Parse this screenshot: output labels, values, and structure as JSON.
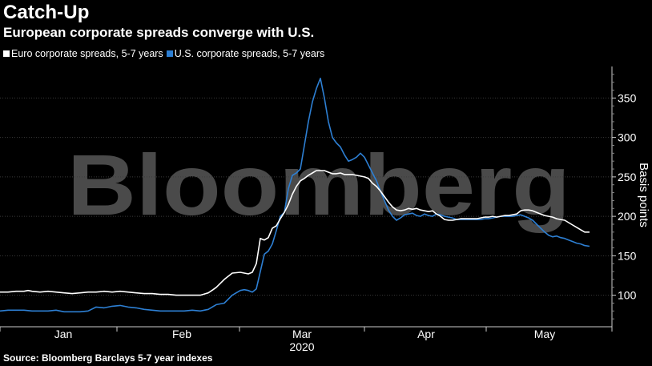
{
  "chart_data": {
    "type": "line",
    "title": "Catch-Up",
    "subtitle": "European corporate spreads converge with U.S.",
    "ylabel": "Basis points",
    "xlabel": "2020",
    "ylim": [
      60,
      390
    ],
    "yticks": [
      100,
      150,
      200,
      250,
      300,
      350
    ],
    "month_labels": [
      "Jan",
      "Feb",
      "Mar",
      "Apr",
      "May"
    ],
    "month_label_pos": [
      1.5,
      1.5,
      3.5,
      3.5,
      3.5
    ],
    "year_label": "2020",
    "series": [
      {
        "name": "Euro corporate spreads, 5-7 years",
        "color": "#ffffff",
        "x": [
          0,
          10,
          20,
          30,
          35,
          40,
          50,
          60,
          70,
          80,
          90,
          100,
          110,
          120,
          130,
          140,
          150,
          160,
          170,
          180,
          190,
          200,
          210,
          220,
          230,
          240,
          250,
          260,
          266,
          270,
          280,
          290,
          300,
          305,
          310,
          315,
          320,
          325,
          330,
          335,
          340,
          345,
          350,
          355,
          360,
          365,
          370,
          375,
          380,
          385,
          390,
          395,
          400,
          405,
          410,
          415,
          420,
          425,
          430,
          435,
          440,
          445,
          450,
          455,
          460,
          465,
          470,
          475,
          480,
          485,
          490,
          495,
          500,
          505,
          510,
          515,
          520,
          525,
          530,
          535,
          540,
          545,
          550,
          555,
          560,
          565,
          570,
          575,
          580,
          585,
          590,
          595,
          600,
          605,
          610,
          615,
          620,
          625,
          630,
          635,
          640,
          645,
          650,
          655,
          660,
          665,
          670,
          675,
          680,
          685,
          690,
          695,
          700,
          705,
          710,
          715,
          720,
          725,
          730,
          736
        ],
        "values": [
          104,
          104,
          105,
          105,
          106,
          105,
          104,
          105,
          104,
          103,
          102,
          103,
          104,
          104,
          105,
          104,
          105,
          104,
          103,
          102,
          102,
          101,
          101,
          100,
          100,
          100,
          100,
          103,
          107,
          110,
          120,
          128,
          129,
          128,
          127,
          129,
          140,
          172,
          170,
          173,
          185,
          188,
          197,
          205,
          215,
          228,
          238,
          245,
          248,
          252,
          255,
          258,
          258,
          258,
          256,
          254,
          254,
          255,
          253,
          253,
          253,
          252,
          251,
          250,
          248,
          242,
          238,
          232,
          225,
          218,
          212,
          208,
          207,
          208,
          210,
          209,
          210,
          208,
          207,
          206,
          207,
          203,
          200,
          196,
          195,
          195,
          196,
          197,
          197,
          197,
          197,
          197,
          198,
          199,
          199,
          200,
          199,
          200,
          201,
          201,
          202,
          203,
          207,
          208,
          208,
          207,
          205,
          203,
          201,
          200,
          199,
          197,
          196,
          195,
          192,
          189,
          186,
          183,
          180,
          180
        ]
      },
      {
        "name": "U.S. corporate spreads, 5-7 years",
        "color": "#2d7fd3",
        "x": [
          0,
          10,
          20,
          30,
          40,
          50,
          60,
          70,
          80,
          90,
          100,
          110,
          120,
          130,
          140,
          150,
          160,
          170,
          180,
          190,
          200,
          210,
          220,
          230,
          240,
          250,
          260,
          270,
          280,
          290,
          300,
          305,
          310,
          315,
          320,
          325,
          330,
          335,
          340,
          345,
          350,
          355,
          360,
          365,
          370,
          375,
          380,
          385,
          390,
          395,
          400,
          405,
          410,
          415,
          420,
          425,
          430,
          435,
          440,
          445,
          450,
          455,
          460,
          465,
          470,
          475,
          480,
          485,
          490,
          495,
          500,
          505,
          510,
          515,
          520,
          525,
          530,
          535,
          540,
          545,
          550,
          555,
          560,
          565,
          570,
          575,
          580,
          585,
          590,
          595,
          600,
          605,
          610,
          615,
          620,
          625,
          630,
          635,
          640,
          645,
          650,
          655,
          660,
          665,
          670,
          675,
          680,
          685,
          690,
          695,
          700,
          705,
          710,
          715,
          720,
          725,
          730,
          736
        ],
        "values": [
          80,
          81,
          81,
          81,
          80,
          80,
          80,
          81,
          79,
          79,
          79,
          80,
          85,
          84,
          86,
          87,
          85,
          84,
          82,
          81,
          80,
          80,
          80,
          80,
          81,
          80,
          82,
          88,
          90,
          100,
          106,
          107,
          106,
          104,
          108,
          130,
          152,
          156,
          165,
          182,
          200,
          205,
          235,
          252,
          255,
          260,
          290,
          320,
          345,
          362,
          375,
          350,
          320,
          300,
          293,
          288,
          278,
          270,
          272,
          275,
          280,
          275,
          265,
          255,
          245,
          232,
          220,
          208,
          200,
          195,
          198,
          202,
          203,
          204,
          201,
          200,
          203,
          201,
          200,
          203,
          202,
          200,
          199,
          198,
          196,
          196,
          196,
          196,
          196,
          196,
          196,
          197,
          197,
          198,
          199,
          200,
          200,
          200,
          200,
          201,
          202,
          200,
          198,
          195,
          190,
          185,
          180,
          176,
          174,
          175,
          173,
          172,
          170,
          168,
          166,
          165,
          163,
          162
        ]
      }
    ],
    "watermark": "Bloomberg",
    "legend_position": "top-left"
  },
  "legend": {
    "euro_label": "Euro corporate spreads, 5-7 years",
    "us_label": "U.S. corporate spreads, 5-7 years"
  },
  "source": "Source: Bloomberg Barclays 5-7 year indexes"
}
